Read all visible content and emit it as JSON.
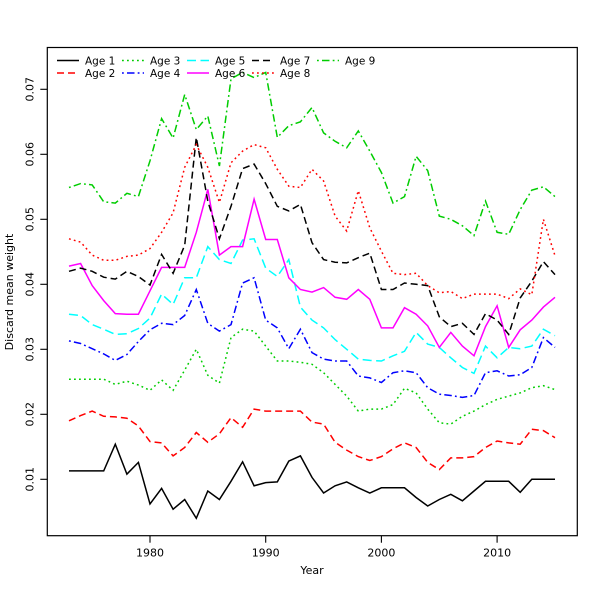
{
  "chart_data": {
    "type": "line",
    "title": "",
    "xlabel": "Year",
    "ylabel": "Discard mean weight",
    "xticks": [
      1980,
      1990,
      2000,
      2010
    ],
    "yticks": [
      0.01,
      0.02,
      0.03,
      0.04,
      0.05,
      0.06,
      0.07
    ],
    "xlim": [
      1971.3,
      2016.7
    ],
    "ylim": [
      0.001,
      0.077
    ],
    "grid": false,
    "legend": {
      "position": "top-left",
      "columns": 5,
      "rows": 2,
      "border": false
    },
    "x": [
      1973,
      1974,
      1975,
      1976,
      1977,
      1978,
      1979,
      1980,
      1981,
      1982,
      1983,
      1984,
      1985,
      1986,
      1987,
      1988,
      1989,
      1990,
      1991,
      1992,
      1993,
      1994,
      1995,
      1996,
      1997,
      1998,
      1999,
      2000,
      2001,
      2002,
      2003,
      2004,
      2005,
      2006,
      2007,
      2008,
      2009,
      2010,
      2011,
      2012,
      2013,
      2014,
      2015
    ],
    "series": [
      {
        "name": "Age 1",
        "color": "#000000",
        "linestyle": "solid",
        "values": [
          0.0113,
          0.0113,
          0.0113,
          0.0113,
          0.0154,
          0.0108,
          0.0126,
          0.0062,
          0.0086,
          0.0054,
          0.0069,
          0.004,
          0.0082,
          0.0069,
          0.0097,
          0.0127,
          0.009,
          0.0095,
          0.0096,
          0.0128,
          0.0136,
          0.0103,
          0.0079,
          0.009,
          0.0096,
          0.0087,
          0.0079,
          0.0087,
          0.0087,
          0.0087,
          0.0072,
          0.0059,
          0.0069,
          0.0077,
          0.0067,
          0.0082,
          0.0097,
          0.0097,
          0.0097,
          0.008,
          0.01,
          0.01,
          0.01
        ]
      },
      {
        "name": "Age 2",
        "color": "#FF0000",
        "linestyle": "dashed",
        "values": [
          0.019,
          0.0198,
          0.0205,
          0.0197,
          0.0196,
          0.0194,
          0.0182,
          0.0158,
          0.0156,
          0.0136,
          0.0149,
          0.0172,
          0.0157,
          0.017,
          0.0195,
          0.018,
          0.0208,
          0.0205,
          0.0205,
          0.0205,
          0.0205,
          0.0188,
          0.0185,
          0.0157,
          0.0145,
          0.0135,
          0.0129,
          0.0135,
          0.0147,
          0.0156,
          0.0149,
          0.0126,
          0.0115,
          0.0133,
          0.0133,
          0.0135,
          0.0149,
          0.0159,
          0.0156,
          0.0154,
          0.0177,
          0.0175,
          0.0164
        ]
      },
      {
        "name": "Age 3",
        "color": "#00CD00",
        "linestyle": "dotted",
        "values": [
          0.0254,
          0.0254,
          0.0254,
          0.0254,
          0.0246,
          0.0251,
          0.0245,
          0.0237,
          0.0253,
          0.0237,
          0.0268,
          0.03,
          0.026,
          0.0248,
          0.0318,
          0.0331,
          0.0328,
          0.0305,
          0.0282,
          0.0282,
          0.028,
          0.0277,
          0.0264,
          0.0246,
          0.0228,
          0.0205,
          0.0208,
          0.0208,
          0.0215,
          0.024,
          0.0233,
          0.0208,
          0.0187,
          0.0185,
          0.0197,
          0.0205,
          0.0215,
          0.0223,
          0.0228,
          0.0233,
          0.0241,
          0.0244,
          0.0238
        ]
      },
      {
        "name": "Age 4",
        "color": "#0000FF",
        "linestyle": "dotdash",
        "values": [
          0.0313,
          0.0309,
          0.0301,
          0.0293,
          0.0283,
          0.0292,
          0.0312,
          0.033,
          0.034,
          0.0338,
          0.0352,
          0.0392,
          0.034,
          0.0328,
          0.0338,
          0.0402,
          0.041,
          0.0345,
          0.0333,
          0.0301,
          0.0331,
          0.0295,
          0.0285,
          0.0282,
          0.0282,
          0.0259,
          0.0256,
          0.0249,
          0.0264,
          0.0267,
          0.0264,
          0.0241,
          0.0231,
          0.0229,
          0.0226,
          0.0229,
          0.0264,
          0.0267,
          0.0259,
          0.0261,
          0.0272,
          0.0318,
          0.0303
        ]
      },
      {
        "name": "Age 5",
        "color": "#00FFFF",
        "linestyle": "longdash",
        "values": [
          0.0354,
          0.0352,
          0.0338,
          0.0331,
          0.0323,
          0.0324,
          0.0332,
          0.0348,
          0.0385,
          0.0369,
          0.041,
          0.041,
          0.0458,
          0.0438,
          0.0432,
          0.0468,
          0.047,
          0.0425,
          0.0412,
          0.0438,
          0.0365,
          0.0345,
          0.0333,
          0.0315,
          0.03,
          0.0285,
          0.0283,
          0.0282,
          0.029,
          0.0297,
          0.0326,
          0.0308,
          0.0303,
          0.0287,
          0.0272,
          0.0263,
          0.0305,
          0.0287,
          0.0303,
          0.0301,
          0.0305,
          0.0331,
          0.0321
        ]
      },
      {
        "name": "Age 6",
        "color": "#FF00FF",
        "linestyle": "solid",
        "values": [
          0.0428,
          0.0432,
          0.0398,
          0.0375,
          0.0355,
          0.0354,
          0.0354,
          0.039,
          0.0426,
          0.0426,
          0.0426,
          0.048,
          0.0546,
          0.0445,
          0.0458,
          0.0458,
          0.0531,
          0.0469,
          0.0469,
          0.041,
          0.0392,
          0.0388,
          0.0395,
          0.038,
          0.0377,
          0.0392,
          0.0377,
          0.0333,
          0.0333,
          0.0364,
          0.0354,
          0.0336,
          0.0303,
          0.0326,
          0.0305,
          0.029,
          0.0335,
          0.0367,
          0.0303,
          0.033,
          0.0345,
          0.0365,
          0.038
        ]
      },
      {
        "name": "Age 7",
        "color": "#000000",
        "linestyle": "dashed",
        "values": [
          0.042,
          0.0425,
          0.042,
          0.0411,
          0.0408,
          0.042,
          0.0412,
          0.0399,
          0.0446,
          0.0417,
          0.046,
          0.0626,
          0.0528,
          0.047,
          0.052,
          0.0578,
          0.0585,
          0.0555,
          0.052,
          0.0513,
          0.0523,
          0.0464,
          0.0438,
          0.0434,
          0.0433,
          0.0441,
          0.0448,
          0.0392,
          0.0392,
          0.0402,
          0.04,
          0.0398,
          0.035,
          0.0335,
          0.034,
          0.0323,
          0.0355,
          0.0345,
          0.0323,
          0.0379,
          0.0405,
          0.0435,
          0.0415
        ]
      },
      {
        "name": "Age 8",
        "color": "#FF0000",
        "linestyle": "dotted",
        "values": [
          0.047,
          0.0465,
          0.0445,
          0.0437,
          0.0437,
          0.0443,
          0.0445,
          0.0455,
          0.048,
          0.051,
          0.058,
          0.0615,
          0.058,
          0.0526,
          0.0587,
          0.0605,
          0.0615,
          0.061,
          0.0577,
          0.0551,
          0.0549,
          0.0577,
          0.0559,
          0.0505,
          0.0482,
          0.0544,
          0.0487,
          0.0451,
          0.0417,
          0.0415,
          0.0417,
          0.0398,
          0.0387,
          0.0389,
          0.0378,
          0.0385,
          0.0385,
          0.0385,
          0.0378,
          0.0393,
          0.0384,
          0.05,
          0.0444
        ]
      },
      {
        "name": "Age 9",
        "color": "#00CD00",
        "linestyle": "dotdash",
        "values": [
          0.0549,
          0.0555,
          0.0553,
          0.0527,
          0.0525,
          0.054,
          0.0535,
          0.059,
          0.0655,
          0.0625,
          0.0692,
          0.0638,
          0.0659,
          0.0582,
          0.0716,
          0.0726,
          0.0718,
          0.0726,
          0.0626,
          0.0644,
          0.065,
          0.0672,
          0.0633,
          0.062,
          0.061,
          0.0636,
          0.0605,
          0.0572,
          0.0525,
          0.0535,
          0.0597,
          0.0575,
          0.0505,
          0.05,
          0.049,
          0.0475,
          0.0528,
          0.048,
          0.0477,
          0.0515,
          0.0545,
          0.055,
          0.0535
        ]
      }
    ]
  }
}
